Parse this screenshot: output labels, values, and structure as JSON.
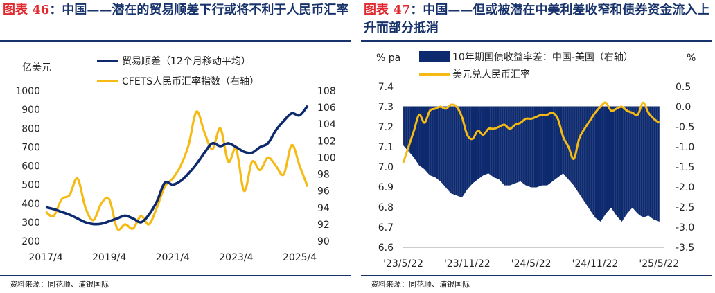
{
  "figures": [
    {
      "id": "fig46",
      "title_prefix": "图表 46",
      "title_text": "：中国——潜在的贸易顺差下行或将不利于人民币汇率",
      "source": "资料来源：同花顺、浦银国际"
    },
    {
      "id": "fig47",
      "title_prefix": "图表 47",
      "title_text": "：中国——但或被潜在中美利差收窄和债券资金流入上升而部分抵消",
      "source": "资料来源：同花顺、浦银国际"
    }
  ],
  "colors": {
    "navy": "#0d2a6e",
    "gold": "#f5bb14",
    "title": "#18336b",
    "red": "#e0282e"
  },
  "chart_data": [
    {
      "type": "line",
      "title": "中国——潜在的贸易顺差下行或将不利于人民币汇率",
      "ylabel_left": "亿美元",
      "y_left_range": [
        200,
        1000
      ],
      "y_left_ticks": [
        "1000",
        "900",
        "800",
        "700",
        "600",
        "500",
        "400",
        "300",
        "200"
      ],
      "y_right_range": [
        90,
        108
      ],
      "y_right_ticks": [
        "108",
        "106",
        "104",
        "102",
        "100",
        "98",
        "96",
        "94",
        "92",
        "90"
      ],
      "x_range": [
        2017.25,
        2025.5
      ],
      "x_ticks": [
        {
          "label": "2017/4",
          "pos": 2017.25
        },
        {
          "label": "2019/4",
          "pos": 2019.25
        },
        {
          "label": "2021/4",
          "pos": 2021.25
        },
        {
          "label": "2023/4",
          "pos": 2023.25
        },
        {
          "label": "2025/4",
          "pos": 2025.25
        }
      ],
      "series": [
        {
          "name": "贸易顺差（12个月移动平均）",
          "axis": "left",
          "color": "#0d2a6e",
          "x": [
            2017.25,
            2017.5,
            2017.75,
            2018.0,
            2018.25,
            2018.5,
            2018.75,
            2019.0,
            2019.25,
            2019.5,
            2019.75,
            2020.0,
            2020.25,
            2020.5,
            2020.75,
            2021.0,
            2021.25,
            2021.5,
            2021.75,
            2022.0,
            2022.25,
            2022.5,
            2022.75,
            2023.0,
            2023.25,
            2023.5,
            2023.75,
            2024.0,
            2024.25,
            2024.5,
            2024.75,
            2025.0,
            2025.25,
            2025.5
          ],
          "values": [
            380,
            370,
            355,
            340,
            320,
            300,
            290,
            292,
            305,
            320,
            335,
            320,
            300,
            340,
            410,
            510,
            500,
            520,
            560,
            610,
            670,
            720,
            705,
            720,
            700,
            675,
            670,
            700,
            720,
            790,
            840,
            880,
            870,
            920
          ]
        },
        {
          "name": "CFETS人民币汇率指数（右轴）",
          "axis": "right",
          "color": "#f5bb14",
          "x": [
            2017.25,
            2017.5,
            2017.75,
            2018.0,
            2018.25,
            2018.5,
            2018.75,
            2019.0,
            2019.25,
            2019.5,
            2019.75,
            2020.0,
            2020.25,
            2020.5,
            2020.75,
            2021.0,
            2021.25,
            2021.5,
            2021.75,
            2022.0,
            2022.25,
            2022.5,
            2022.75,
            2023.0,
            2023.25,
            2023.5,
            2023.75,
            2024.0,
            2024.25,
            2024.5,
            2024.75,
            2025.0,
            2025.25,
            2025.5
          ],
          "values": [
            93.5,
            93.0,
            95.0,
            95.5,
            97.5,
            94.0,
            92.5,
            94.5,
            95.0,
            91.5,
            92.0,
            91.5,
            93.0,
            92.0,
            94.0,
            96.5,
            97.5,
            99.0,
            101.5,
            105.5,
            103.0,
            101.0,
            103.5,
            99.5,
            101.0,
            96.0,
            99.5,
            98.5,
            100.0,
            99.0,
            98.0,
            101.5,
            99.0,
            96.5
          ]
        }
      ]
    },
    {
      "type": "area",
      "title": "中国——但或被潜在中美利差收窄和债券资金流入上升而部分抵消",
      "ylabel_left": "% pa",
      "ylabel_right": "%",
      "y_left_range": [
        6.6,
        7.4
      ],
      "y_left_ticks": [
        "7.4",
        "7.3",
        "7.2",
        "7.1",
        "7.0",
        "6.9",
        "6.8",
        "6.7",
        "6.6"
      ],
      "y_right_range": [
        -3.5,
        0.5
      ],
      "y_right_ticks": [
        "0.5",
        "0.0",
        "-0.5",
        "-1.0",
        "-1.5",
        "-2.0",
        "-2.5",
        "-3.0",
        "-3.5"
      ],
      "x_range": [
        0,
        24.5
      ],
      "x_ticks": [
        {
          "label": "'23/5/22",
          "pos": 0
        },
        {
          "label": "'23/11/22",
          "pos": 6
        },
        {
          "label": "'24/5/22",
          "pos": 12
        },
        {
          "label": "'24/11/22",
          "pos": 18
        },
        {
          "label": "'25/5/22",
          "pos": 24
        }
      ],
      "series": [
        {
          "name": "10年期国债收益率差：中国-美国（右轴）",
          "axis": "right",
          "color": "#0d2a6e",
          "x": [
            0,
            0.5,
            1,
            1.5,
            2,
            2.5,
            3,
            3.5,
            4,
            4.5,
            5,
            5.5,
            6,
            6.5,
            7,
            7.5,
            8,
            8.5,
            9,
            9.5,
            10,
            10.5,
            11,
            11.5,
            12,
            12.5,
            13,
            13.5,
            14,
            14.5,
            15,
            15.5,
            16,
            16.5,
            17,
            17.5,
            18,
            18.5,
            19,
            19.5,
            20,
            20.5,
            21,
            21.5,
            22,
            22.5,
            23,
            23.5,
            24
          ],
          "values": [
            -0.95,
            -1.1,
            -1.25,
            -1.45,
            -1.55,
            -1.7,
            -1.75,
            -1.85,
            -2.0,
            -2.15,
            -2.2,
            -2.25,
            -2.05,
            -1.9,
            -1.8,
            -1.7,
            -1.65,
            -1.75,
            -1.8,
            -1.95,
            -1.95,
            -1.9,
            -1.85,
            -1.95,
            -2.0,
            -2.0,
            -1.95,
            -1.95,
            -1.85,
            -1.75,
            -1.65,
            -1.8,
            -1.95,
            -2.15,
            -2.35,
            -2.55,
            -2.75,
            -2.85,
            -2.65,
            -2.5,
            -2.7,
            -2.85,
            -2.65,
            -2.5,
            -2.65,
            -2.75,
            -2.7,
            -2.8,
            -2.85
          ]
        },
        {
          "name": "美元兑人民币汇率",
          "axis": "left",
          "color": "#f5bb14",
          "x": [
            0,
            0.5,
            1,
            1.5,
            2,
            2.5,
            3,
            3.5,
            4,
            4.5,
            5,
            5.5,
            6,
            6.5,
            7,
            7.5,
            8,
            8.5,
            9,
            9.5,
            10,
            10.5,
            11,
            11.5,
            12,
            12.5,
            13,
            13.5,
            14,
            14.5,
            15,
            15.5,
            16,
            16.5,
            17,
            17.5,
            18,
            18.5,
            19,
            19.5,
            20,
            20.5,
            21,
            21.5,
            22,
            22.5,
            23,
            23.5,
            24
          ],
          "values": [
            7.02,
            7.1,
            7.18,
            7.26,
            7.22,
            7.28,
            7.29,
            7.3,
            7.29,
            7.31,
            7.3,
            7.25,
            7.16,
            7.14,
            7.18,
            7.16,
            7.19,
            7.19,
            7.2,
            7.21,
            7.19,
            7.21,
            7.22,
            7.24,
            7.24,
            7.25,
            7.26,
            7.26,
            7.27,
            7.24,
            7.15,
            7.1,
            7.04,
            7.14,
            7.19,
            7.23,
            7.27,
            7.3,
            7.32,
            7.28,
            7.29,
            7.3,
            7.28,
            7.27,
            7.26,
            7.32,
            7.27,
            7.24,
            7.22
          ]
        }
      ]
    }
  ]
}
